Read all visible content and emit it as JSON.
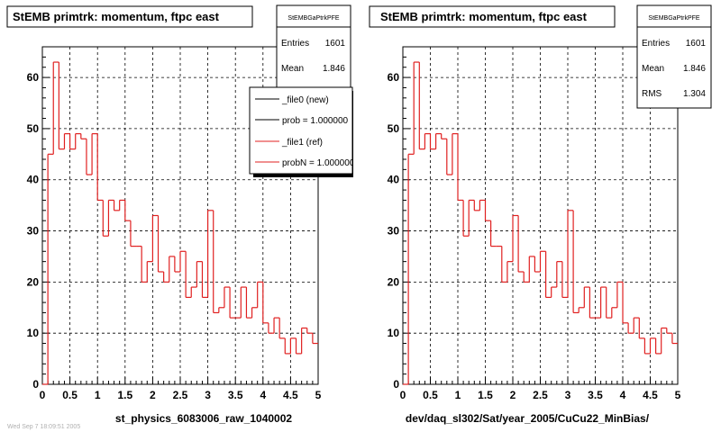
{
  "footer_text": "Wed Sep 7 18:09:51 2005",
  "chart_data": [
    {
      "type": "histogram",
      "title": "StEMB primtrk: momentum, ftpc east",
      "xlabel": "st_physics_6083006_raw_1040002",
      "ylabel": "",
      "xlim": [
        0,
        5
      ],
      "ylim": [
        0,
        66
      ],
      "x_ticks": [
        0,
        0.5,
        1,
        1.5,
        2,
        2.5,
        3,
        3.5,
        4,
        4.5,
        5
      ],
      "x_tick_labels": [
        "0",
        "0.5",
        "1",
        "1.5",
        "2",
        "2.5",
        "3",
        "3.5",
        "4",
        "4.5",
        "5"
      ],
      "y_ticks": [
        0,
        10,
        20,
        30,
        40,
        50,
        60
      ],
      "y_tick_labels": [
        "0",
        "10",
        "20",
        "30",
        "40",
        "50",
        "60"
      ],
      "grid": true,
      "bin_width": 0.1,
      "series": [
        {
          "name": "_file1 (ref)",
          "color": "#e02020",
          "values": [
            0,
            45,
            63,
            46,
            49,
            46,
            49,
            48,
            41,
            49,
            36,
            29,
            36,
            34,
            36,
            32,
            27,
            27,
            20,
            24,
            33,
            22,
            20,
            25,
            22,
            26,
            17,
            19,
            24,
            17,
            34,
            14,
            15,
            19,
            13,
            13,
            19,
            13,
            15,
            20,
            12,
            10,
            13,
            9,
            6,
            9,
            6,
            11,
            10,
            8
          ]
        }
      ],
      "stats": {
        "name": "StEMBGaPtrkPFE",
        "rows": [
          {
            "label": "Entries",
            "value": "1601"
          },
          {
            "label": "Mean",
            "value": "1.846"
          }
        ]
      },
      "legend": {
        "placement": "top-right",
        "entries": [
          {
            "label": "_file0 (new)",
            "color": "#000000"
          },
          {
            "label": "prob = 1.000000",
            "color": "#000000"
          },
          {
            "label": "_file1 (ref)",
            "color": "#e02020"
          },
          {
            "label": "probN = 1.000000",
            "color": "#e02020"
          }
        ]
      }
    },
    {
      "type": "histogram",
      "title": "StEMB primtrk: momentum, ftpc east",
      "xlabel": "dev/daq_sl302/Sat/year_2005/CuCu22_MinBias/",
      "ylabel": "",
      "xlim": [
        0,
        5
      ],
      "ylim": [
        0,
        66
      ],
      "x_ticks": [
        0,
        0.5,
        1,
        1.5,
        2,
        2.5,
        3,
        3.5,
        4,
        4.5,
        5
      ],
      "x_tick_labels": [
        "0",
        "0.5",
        "1",
        "1.5",
        "2",
        "2.5",
        "3",
        "3.5",
        "4",
        "4.5",
        "5"
      ],
      "y_ticks": [
        0,
        10,
        20,
        30,
        40,
        50,
        60
      ],
      "y_tick_labels": [
        "0",
        "10",
        "20",
        "30",
        "40",
        "50",
        "60"
      ],
      "grid": true,
      "bin_width": 0.1,
      "series": [
        {
          "name": "",
          "color": "#e02020",
          "values": [
            0,
            45,
            63,
            46,
            49,
            46,
            49,
            48,
            41,
            49,
            36,
            29,
            36,
            34,
            36,
            32,
            27,
            27,
            20,
            24,
            33,
            22,
            20,
            25,
            22,
            26,
            17,
            19,
            24,
            17,
            34,
            14,
            15,
            19,
            13,
            13,
            19,
            13,
            15,
            20,
            12,
            10,
            13,
            9,
            6,
            9,
            6,
            11,
            10,
            8
          ]
        }
      ],
      "stats": {
        "name": "StEMBGaPtrkPFE",
        "rows": [
          {
            "label": "Entries",
            "value": "1601"
          },
          {
            "label": "Mean",
            "value": "1.846"
          },
          {
            "label": "RMS",
            "value": "1.304"
          }
        ]
      }
    }
  ]
}
